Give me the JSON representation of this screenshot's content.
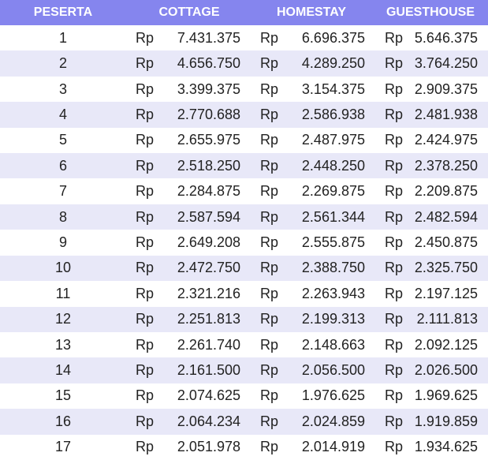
{
  "table": {
    "headers": [
      "PESERTA",
      "COTTAGE",
      "HOMESTAY",
      "GUESTHOUSE"
    ],
    "currency": "Rp",
    "rows": [
      [
        "1",
        "7.431.375",
        "6.696.375",
        "5.646.375"
      ],
      [
        "2",
        "4.656.750",
        "4.289.250",
        "3.764.250"
      ],
      [
        "3",
        "3.399.375",
        "3.154.375",
        "2.909.375"
      ],
      [
        "4",
        "2.770.688",
        "2.586.938",
        "2.481.938"
      ],
      [
        "5",
        "2.655.975",
        "2.487.975",
        "2.424.975"
      ],
      [
        "6",
        "2.518.250",
        "2.448.250",
        "2.378.250"
      ],
      [
        "7",
        "2.284.875",
        "2.269.875",
        "2.209.875"
      ],
      [
        "8",
        "2.587.594",
        "2.561.344",
        "2.482.594"
      ],
      [
        "9",
        "2.649.208",
        "2.555.875",
        "2.450.875"
      ],
      [
        "10",
        "2.472.750",
        "2.388.750",
        "2.325.750"
      ],
      [
        "11",
        "2.321.216",
        "2.263.943",
        "2.197.125"
      ],
      [
        "12",
        "2.251.813",
        "2.199.313",
        "2.111.813"
      ],
      [
        "13",
        "2.261.740",
        "2.148.663",
        "2.092.125"
      ],
      [
        "14",
        "2.161.500",
        "2.056.500",
        "2.026.500"
      ],
      [
        "15",
        "2.074.625",
        "1.976.625",
        "1.969.625"
      ],
      [
        "16",
        "2.064.234",
        "2.024.859",
        "1.919.859"
      ],
      [
        "17",
        "2.051.978",
        "2.014.919",
        "1.934.625"
      ]
    ]
  }
}
